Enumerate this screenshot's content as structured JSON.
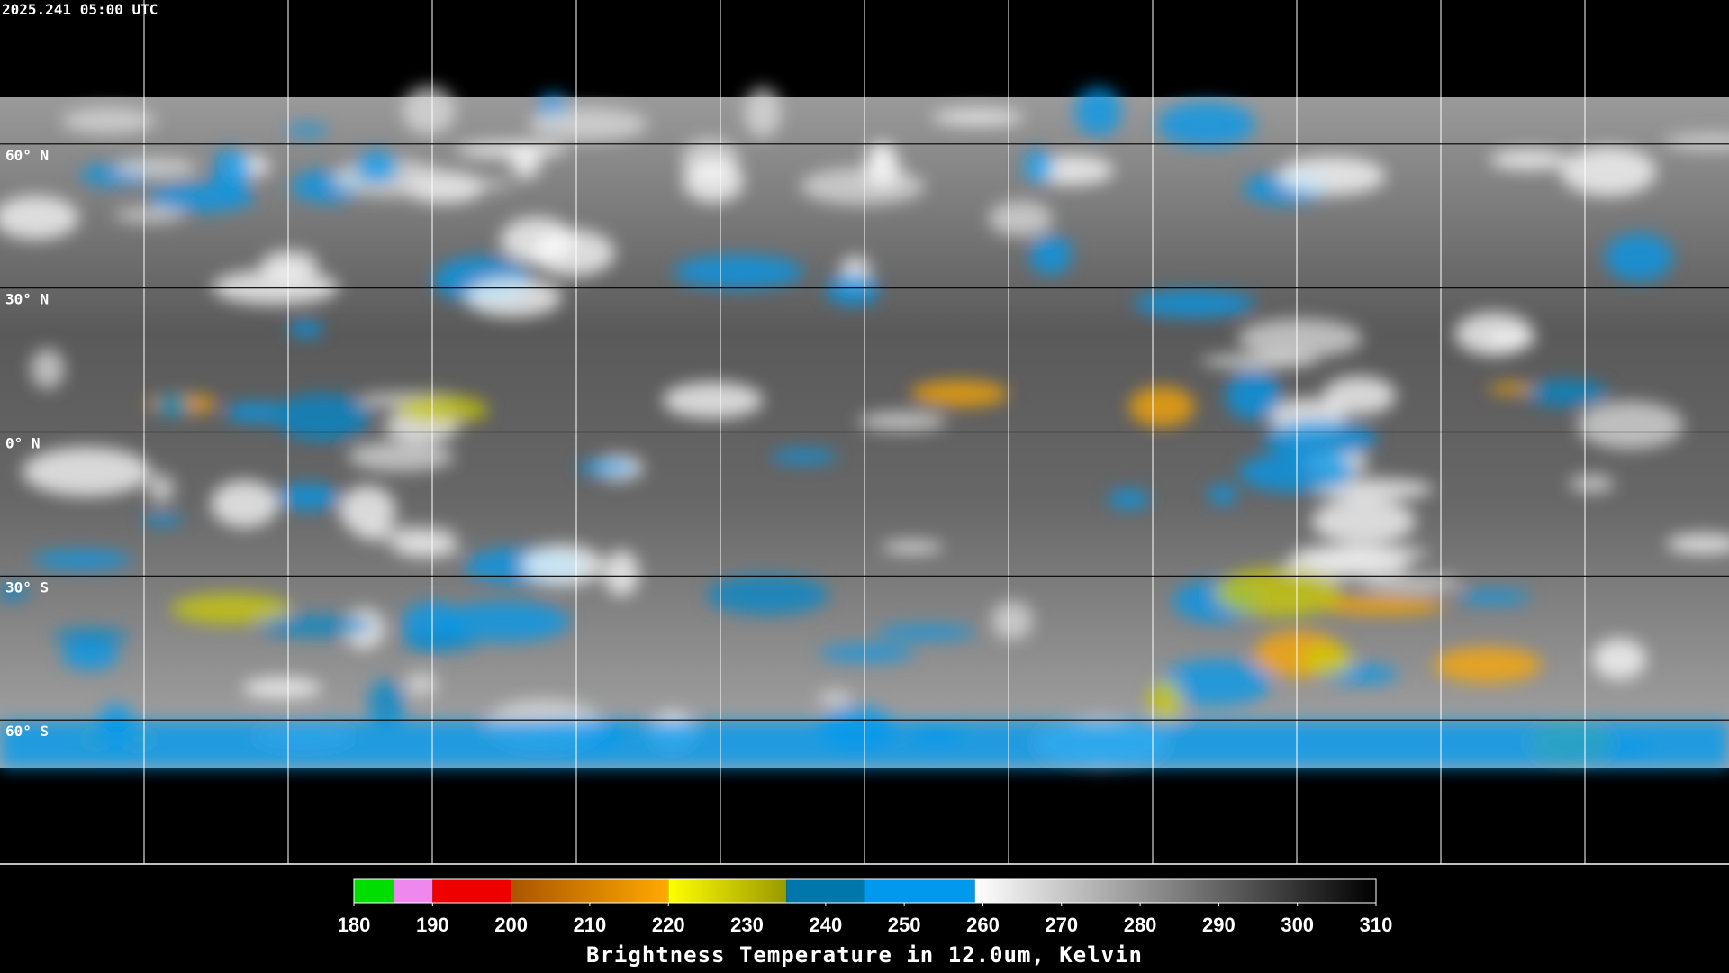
{
  "timestamp": "2025.241 05:00 UTC",
  "latitudes": [
    {
      "value": 60,
      "label": "60° N"
    },
    {
      "value": 30,
      "label": "30° N"
    },
    {
      "value": 0,
      "label": "0° N"
    },
    {
      "value": -30,
      "label": "30° S"
    },
    {
      "value": -60,
      "label": "60° S"
    }
  ],
  "colorbar": {
    "title": "Brightness Temperature in 12.0um, Kelvin",
    "range": [
      180,
      310
    ],
    "ticks": [
      180,
      190,
      200,
      210,
      220,
      230,
      240,
      250,
      260,
      270,
      280,
      290,
      300,
      310
    ],
    "segments": [
      {
        "from": 180,
        "to": 185,
        "colors": [
          "#00dd00",
          "#00dd00"
        ]
      },
      {
        "from": 185,
        "to": 190,
        "colors": [
          "#ee88ee",
          "#ee88ee"
        ]
      },
      {
        "from": 190,
        "to": 200,
        "colors": [
          "#ee0000",
          "#ee0000"
        ]
      },
      {
        "from": 200,
        "to": 220,
        "colors": [
          "#aa5500",
          "#ffaa00"
        ]
      },
      {
        "from": 220,
        "to": 235,
        "colors": [
          "#ffff00",
          "#999900"
        ]
      },
      {
        "from": 235,
        "to": 245,
        "colors": [
          "#0077aa",
          "#0077aa"
        ]
      },
      {
        "from": 245,
        "to": 259,
        "colors": [
          "#0099ee",
          "#0099ee"
        ]
      },
      {
        "from": 259,
        "to": 310,
        "colors": [
          "#ffffff",
          "#000000"
        ]
      }
    ]
  }
}
